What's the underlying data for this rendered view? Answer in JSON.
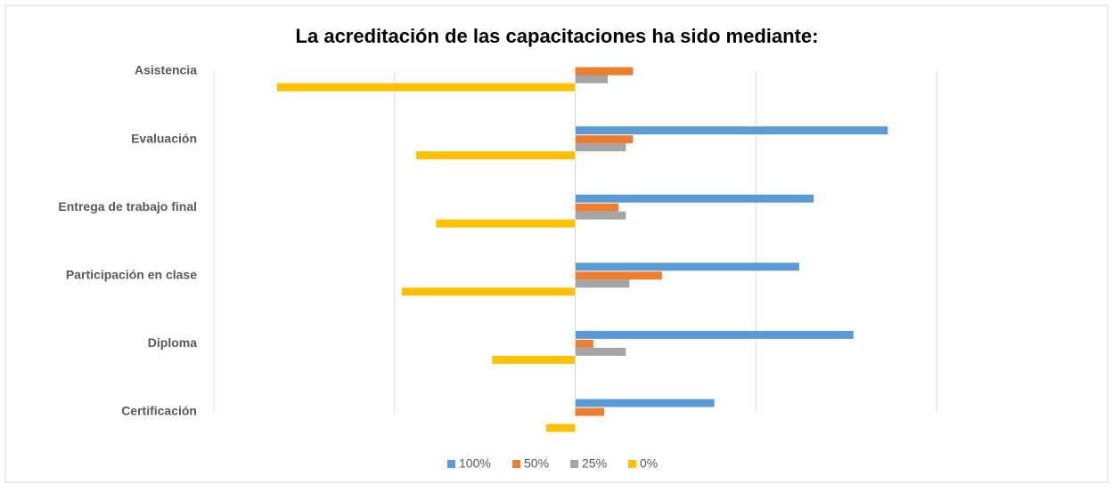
{
  "chart_data": {
    "type": "hbar",
    "title": "La acreditación de las capacitaciones ha sido mediante:",
    "categories": [
      "Asistencia",
      "Evaluación",
      "Entrega de trabajo final",
      "Participación en clase",
      "Diploma",
      "Certificación"
    ],
    "series": [
      {
        "name": "100%",
        "color": "#5b9bd5",
        "values": [
          null,
          17.3,
          13.2,
          12.4,
          15.4,
          7.7
        ]
      },
      {
        "name": "50%",
        "color": "#ed7d31",
        "values": [
          3.2,
          3.2,
          2.4,
          4.8,
          1.0,
          1.6
        ]
      },
      {
        "name": "25%",
        "color": "#a5a5a5",
        "values": [
          1.8,
          2.8,
          2.8,
          3.0,
          2.8,
          null
        ]
      },
      {
        "name": "0%",
        "color": "#ffc000",
        "values": [
          -16.5,
          -8.8,
          -7.7,
          -9.6,
          -4.6,
          -1.6
        ]
      }
    ],
    "xlim": [
      -20,
      20
    ],
    "xticks": [
      -20,
      -10,
      0,
      10,
      20
    ],
    "grid": true,
    "legend": "bottom"
  }
}
